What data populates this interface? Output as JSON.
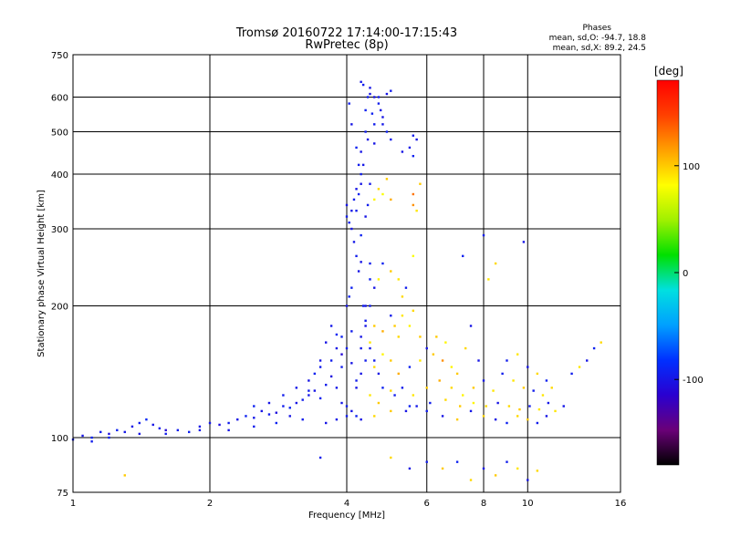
{
  "header": {
    "title_line1": "Tromsø 20160722 17:14:00-17:15:43",
    "title_line2": "RwPretec (8p)",
    "phase_title": "Phases",
    "phase_o": "mean, sd,O: -94.7, 18.8",
    "phase_x": "mean, sd,X:  89.2, 24.5"
  },
  "colorbar": {
    "label": "[deg]",
    "ticks": [
      {
        "label": "100",
        "value": 100
      },
      {
        "label": "0",
        "value": 0
      },
      {
        "label": "-100",
        "value": -100
      }
    ],
    "range": [
      -180,
      180
    ],
    "colormap": [
      "#000000",
      "#6a0078",
      "#2a00d0",
      "#0030ff",
      "#00a0ff",
      "#00e0e0",
      "#00e000",
      "#a0f000",
      "#ffff00",
      "#ffa000",
      "#ff4000",
      "#ff0000"
    ]
  },
  "chart_data": {
    "type": "scatter",
    "title": "Tromsø 20160722 17:14:00-17:15:43",
    "subtitle": "RwPretec (8p)",
    "xlabel": "Frequency [MHz]",
    "ylabel": "Stationary phase Virtual Height [km]",
    "x_scale": "log",
    "y_scale": "log",
    "xlim": [
      1,
      16
    ],
    "ylim": [
      75,
      750
    ],
    "x_ticks": [
      {
        "label": "1",
        "value": 1
      },
      {
        "label": "2",
        "value": 2
      },
      {
        "label": "4",
        "value": 4
      },
      {
        "label": "6",
        "value": 6
      },
      {
        "label": "8",
        "value": 8
      },
      {
        "label": "10",
        "value": 10
      },
      {
        "label": "16",
        "value": 16
      }
    ],
    "y_ticks": [
      {
        "label": "75",
        "value": 75
      },
      {
        "label": "100",
        "value": 100
      },
      {
        "label": "200",
        "value": 200
      },
      {
        "label": "300",
        "value": 300
      },
      {
        "label": "400",
        "value": 400
      },
      {
        "label": "500",
        "value": 500
      },
      {
        "label": "600",
        "value": 600
      },
      {
        "label": "750",
        "value": 750
      }
    ],
    "grid": true,
    "color_by": "phase_deg",
    "points": [
      [
        1.0,
        99,
        -95
      ],
      [
        1.05,
        101,
        -100
      ],
      [
        1.1,
        100,
        -90
      ],
      [
        1.15,
        103,
        -95
      ],
      [
        1.2,
        102,
        -105
      ],
      [
        1.25,
        104,
        -92
      ],
      [
        1.3,
        103,
        -98
      ],
      [
        1.35,
        106,
        -100
      ],
      [
        1.4,
        108,
        -95
      ],
      [
        1.45,
        110,
        -88
      ],
      [
        1.5,
        107,
        -100
      ],
      [
        1.55,
        105,
        -95
      ],
      [
        1.6,
        104,
        -110
      ],
      [
        1.7,
        104,
        -95
      ],
      [
        1.8,
        103,
        -92
      ],
      [
        1.9,
        106,
        -100
      ],
      [
        2.0,
        108,
        -98
      ],
      [
        2.1,
        107,
        -105
      ],
      [
        2.2,
        108,
        -95
      ],
      [
        2.3,
        110,
        -100
      ],
      [
        2.4,
        112,
        -92
      ],
      [
        2.5,
        111,
        -98
      ],
      [
        2.6,
        115,
        -100
      ],
      [
        2.7,
        113,
        -95
      ],
      [
        2.8,
        114,
        -105
      ],
      [
        2.9,
        118,
        -95
      ],
      [
        3.0,
        117,
        -90
      ],
      [
        3.1,
        120,
        -100
      ],
      [
        3.2,
        122,
        -95
      ],
      [
        3.3,
        125,
        -98
      ],
      [
        3.4,
        128,
        -100
      ],
      [
        3.5,
        123,
        -92
      ],
      [
        3.6,
        132,
        -95
      ],
      [
        3.7,
        138,
        -105
      ],
      [
        3.8,
        130,
        -98
      ],
      [
        3.9,
        145,
        -95
      ],
      [
        3.5,
        150,
        -100
      ],
      [
        3.4,
        140,
        -92
      ],
      [
        3.3,
        128,
        -95
      ],
      [
        3.6,
        165,
        -100
      ],
      [
        3.7,
        180,
        -98
      ],
      [
        3.8,
        172,
        -90
      ],
      [
        3.9,
        155,
        -110
      ],
      [
        4.0,
        160,
        -95
      ],
      [
        4.0,
        200,
        -100
      ],
      [
        4.05,
        210,
        -92
      ],
      [
        4.1,
        175,
        -95
      ],
      [
        4.1,
        148,
        -100
      ],
      [
        3.9,
        120,
        -98
      ],
      [
        4.0,
        118,
        -95
      ],
      [
        4.1,
        115,
        -100
      ],
      [
        4.2,
        112,
        -92
      ],
      [
        4.2,
        135,
        -95
      ],
      [
        4.3,
        140,
        -100
      ],
      [
        4.3,
        160,
        -98
      ],
      [
        4.4,
        185,
        -95
      ],
      [
        4.4,
        200,
        -100
      ],
      [
        4.5,
        230,
        -92
      ],
      [
        4.5,
        250,
        -95
      ],
      [
        4.3,
        252,
        -100
      ],
      [
        4.0,
        320,
        -95
      ],
      [
        4.0,
        340,
        -100
      ],
      [
        4.05,
        310,
        -92
      ],
      [
        4.1,
        330,
        -98
      ],
      [
        4.15,
        350,
        -95
      ],
      [
        4.2,
        370,
        -100
      ],
      [
        4.25,
        360,
        -92
      ],
      [
        4.3,
        400,
        -95
      ],
      [
        4.3,
        450,
        -100
      ],
      [
        4.35,
        420,
        -98
      ],
      [
        4.4,
        500,
        -95
      ],
      [
        4.45,
        480,
        -100
      ],
      [
        4.4,
        560,
        -92
      ],
      [
        4.45,
        600,
        -95
      ],
      [
        4.5,
        610,
        -100
      ],
      [
        4.3,
        650,
        -98
      ],
      [
        4.35,
        640,
        -95
      ],
      [
        4.5,
        630,
        -100
      ],
      [
        4.55,
        550,
        -92
      ],
      [
        4.6,
        520,
        -95
      ],
      [
        4.6,
        470,
        -100
      ],
      [
        4.5,
        380,
        -98
      ],
      [
        4.45,
        340,
        -95
      ],
      [
        4.4,
        320,
        -100
      ],
      [
        4.3,
        290,
        -92
      ],
      [
        4.2,
        330,
        -95
      ],
      [
        4.1,
        300,
        -100
      ],
      [
        4.6,
        600,
        -98
      ],
      [
        4.7,
        580,
        -95
      ],
      [
        4.8,
        540,
        -100
      ],
      [
        4.9,
        500,
        -92
      ],
      [
        5.0,
        480,
        -95
      ],
      [
        5.3,
        450,
        -100
      ],
      [
        5.5,
        460,
        -98
      ],
      [
        5.6,
        490,
        -95
      ],
      [
        5.7,
        480,
        -100
      ],
      [
        5.6,
        440,
        -92
      ],
      [
        5.0,
        620,
        -95
      ],
      [
        4.9,
        610,
        -100
      ],
      [
        4.6,
        350,
        85
      ],
      [
        4.7,
        370,
        95
      ],
      [
        4.8,
        360,
        80
      ],
      [
        4.9,
        390,
        100
      ],
      [
        5.0,
        350,
        110
      ],
      [
        5.6,
        340,
        120
      ],
      [
        5.7,
        330,
        90
      ],
      [
        5.6,
        360,
        130
      ],
      [
        5.8,
        380,
        100
      ],
      [
        4.5,
        200,
        -95
      ],
      [
        4.6,
        220,
        -100
      ],
      [
        4.7,
        230,
        85
      ],
      [
        4.8,
        250,
        -92
      ],
      [
        5.0,
        240,
        100
      ],
      [
        5.2,
        230,
        90
      ],
      [
        5.4,
        220,
        -95
      ],
      [
        5.3,
        210,
        95
      ],
      [
        5.6,
        260,
        80
      ],
      [
        4.3,
        170,
        -100
      ],
      [
        4.5,
        165,
        90
      ],
      [
        4.6,
        180,
        100
      ],
      [
        4.8,
        175,
        110
      ],
      [
        5.0,
        190,
        -95
      ],
      [
        5.2,
        170,
        95
      ],
      [
        5.5,
        180,
        85
      ],
      [
        5.8,
        170,
        100
      ],
      [
        6.0,
        160,
        -100
      ],
      [
        4.4,
        150,
        -95
      ],
      [
        4.6,
        145,
        95
      ],
      [
        4.8,
        155,
        85
      ],
      [
        5.0,
        150,
        100
      ],
      [
        5.2,
        140,
        110
      ],
      [
        5.5,
        145,
        -92
      ],
      [
        5.8,
        150,
        90
      ],
      [
        6.2,
        155,
        100
      ],
      [
        6.5,
        150,
        120
      ],
      [
        6.8,
        145,
        85
      ],
      [
        7.0,
        140,
        100
      ],
      [
        4.2,
        130,
        -100
      ],
      [
        4.5,
        125,
        90
      ],
      [
        4.7,
        120,
        100
      ],
      [
        5.0,
        128,
        95
      ],
      [
        5.3,
        130,
        -95
      ],
      [
        5.6,
        125,
        90
      ],
      [
        6.0,
        130,
        100
      ],
      [
        6.4,
        135,
        110
      ],
      [
        6.8,
        130,
        95
      ],
      [
        7.2,
        125,
        85
      ],
      [
        7.6,
        130,
        100
      ],
      [
        8.0,
        135,
        -98
      ],
      [
        8.4,
        128,
        90
      ],
      [
        4.0,
        112,
        -95
      ],
      [
        4.3,
        110,
        -100
      ],
      [
        4.6,
        112,
        95
      ],
      [
        5.0,
        115,
        100
      ],
      [
        5.5,
        118,
        -92
      ],
      [
        6.0,
        115,
        -95
      ],
      [
        6.5,
        112,
        -100
      ],
      [
        7.0,
        110,
        100
      ],
      [
        7.5,
        115,
        -98
      ],
      [
        8.0,
        112,
        95
      ],
      [
        8.5,
        110,
        -100
      ],
      [
        9.0,
        108,
        -92
      ],
      [
        9.5,
        112,
        95
      ],
      [
        10.0,
        110,
        100
      ],
      [
        10.5,
        108,
        -95
      ],
      [
        11.0,
        112,
        -100
      ],
      [
        11.5,
        115,
        90
      ],
      [
        12.0,
        118,
        -98
      ],
      [
        12.5,
        140,
        -95
      ],
      [
        13.0,
        145,
        90
      ],
      [
        13.5,
        150,
        -100
      ],
      [
        14.0,
        160,
        -92
      ],
      [
        14.5,
        165,
        95
      ],
      [
        9.0,
        150,
        -95
      ],
      [
        9.5,
        155,
        90
      ],
      [
        10.0,
        145,
        -100
      ],
      [
        10.5,
        140,
        95
      ],
      [
        11.0,
        135,
        -92
      ],
      [
        7.5,
        180,
        -100
      ],
      [
        8.2,
        230,
        90
      ],
      [
        8.5,
        250,
        95
      ],
      [
        8.0,
        290,
        -95
      ],
      [
        9.8,
        280,
        -100
      ],
      [
        7.2,
        260,
        -92
      ],
      [
        5.0,
        90,
        95
      ],
      [
        5.5,
        85,
        -100
      ],
      [
        6.0,
        88,
        -95
      ],
      [
        6.5,
        85,
        100
      ],
      [
        7.0,
        88,
        -92
      ],
      [
        7.5,
        80,
        95
      ],
      [
        8.0,
        85,
        -100
      ],
      [
        8.5,
        82,
        100
      ],
      [
        9.0,
        88,
        -95
      ],
      [
        9.5,
        85,
        90
      ],
      [
        10.0,
        80,
        -100
      ],
      [
        10.5,
        84,
        95
      ],
      [
        3.5,
        90,
        -95
      ],
      [
        1.3,
        82,
        100
      ],
      [
        4.05,
        580,
        -95
      ],
      [
        4.1,
        520,
        -100
      ],
      [
        4.2,
        460,
        -92
      ],
      [
        4.25,
        420,
        -95
      ],
      [
        4.3,
        380,
        -100
      ],
      [
        4.15,
        280,
        -98
      ],
      [
        4.2,
        260,
        -95
      ],
      [
        4.25,
        240,
        -100
      ],
      [
        4.1,
        220,
        -92
      ],
      [
        4.35,
        200,
        -95
      ],
      [
        4.4,
        180,
        -100
      ],
      [
        4.5,
        160,
        -98
      ],
      [
        4.6,
        150,
        -95
      ],
      [
        4.7,
        140,
        -100
      ],
      [
        4.8,
        130,
        -92
      ],
      [
        5.1,
        125,
        -95
      ],
      [
        5.4,
        115,
        -100
      ],
      [
        5.7,
        118,
        -98
      ],
      [
        6.1,
        120,
        -95
      ],
      [
        6.6,
        122,
        95
      ],
      [
        7.1,
        118,
        100
      ],
      [
        7.6,
        120,
        85
      ],
      [
        8.1,
        118,
        95
      ],
      [
        8.6,
        120,
        -100
      ],
      [
        9.1,
        118,
        95
      ],
      [
        9.6,
        116,
        100
      ],
      [
        10.1,
        118,
        -95
      ],
      [
        10.6,
        116,
        90
      ],
      [
        11.1,
        120,
        -98
      ],
      [
        3.2,
        110,
        -95
      ],
      [
        3.0,
        112,
        -100
      ],
      [
        2.8,
        108,
        -92
      ],
      [
        2.5,
        106,
        -95
      ],
      [
        2.2,
        104,
        -100
      ],
      [
        1.9,
        104,
        -98
      ],
      [
        1.6,
        102,
        -95
      ],
      [
        1.4,
        102,
        -100
      ],
      [
        1.2,
        100,
        -92
      ],
      [
        1.1,
        98,
        -95
      ],
      [
        3.6,
        108,
        -100
      ],
      [
        3.8,
        110,
        -98
      ],
      [
        3.7,
        150,
        -95
      ],
      [
        3.8,
        160,
        -100
      ],
      [
        3.9,
        170,
        -92
      ],
      [
        3.5,
        145,
        -95
      ],
      [
        3.3,
        135,
        -100
      ],
      [
        3.1,
        130,
        -98
      ],
      [
        2.9,
        125,
        -95
      ],
      [
        2.7,
        120,
        -100
      ],
      [
        2.5,
        118,
        -92
      ],
      [
        4.7,
        600,
        -95
      ],
      [
        4.75,
        560,
        -100
      ],
      [
        4.8,
        520,
        -98
      ],
      [
        5.1,
        180,
        100
      ],
      [
        5.3,
        190,
        90
      ],
      [
        5.6,
        195,
        95
      ],
      [
        6.3,
        170,
        100
      ],
      [
        6.6,
        165,
        85
      ],
      [
        7.3,
        160,
        95
      ],
      [
        7.8,
        150,
        -100
      ],
      [
        8.8,
        140,
        -95
      ],
      [
        9.3,
        135,
        90
      ],
      [
        9.8,
        130,
        100
      ],
      [
        10.3,
        128,
        -95
      ],
      [
        10.8,
        125,
        90
      ],
      [
        11.3,
        130,
        95
      ]
    ]
  }
}
